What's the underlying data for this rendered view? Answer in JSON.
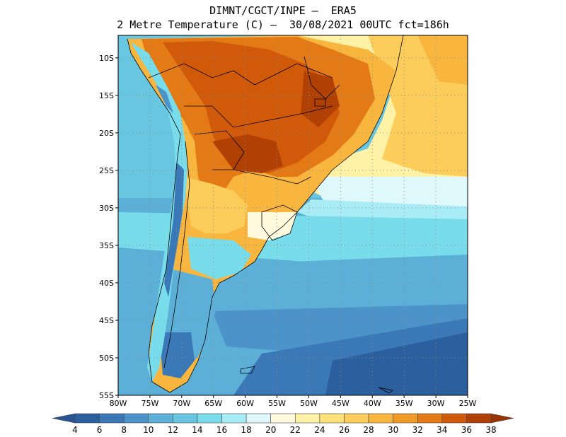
{
  "title": {
    "line1": "DIMNT/CGCT/INPE –  ERA5",
    "line2": "2 Metre Temperature (C) –  30/08/2021 00UTC fct=186h"
  },
  "map": {
    "lat_labels": [
      "10S",
      "15S",
      "20S",
      "25S",
      "30S",
      "35S",
      "40S",
      "45S",
      "50S",
      "55S"
    ],
    "lon_labels": [
      "80W",
      "75W",
      "70W",
      "65W",
      "60W",
      "55W",
      "50W",
      "45W",
      "40W",
      "35W",
      "30W",
      "25W"
    ],
    "lat_values": [
      -10,
      -15,
      -20,
      -25,
      -30,
      -35,
      -40,
      -45,
      -50,
      -55
    ],
    "lon_values": [
      -80,
      -75,
      -70,
      -65,
      -60,
      -55,
      -50,
      -45,
      -40,
      -35,
      -30,
      -25
    ],
    "lat_range": [
      -55,
      -7
    ],
    "lon_range": [
      -80,
      -25
    ],
    "grid": "dotted"
  },
  "colorbar": {
    "labels": [
      "4",
      "6",
      "8",
      "10",
      "12",
      "14",
      "16",
      "18",
      "20",
      "22",
      "24",
      "26",
      "28",
      "30",
      "32",
      "34",
      "36",
      "38"
    ],
    "colors": [
      "#2c5f9e",
      "#3a78b8",
      "#4b93c9",
      "#5cb0d8",
      "#68c6e0",
      "#78dcea",
      "#a8ecf5",
      "#dff8fb",
      "#fff9dd",
      "#fff2a6",
      "#ffe17a",
      "#fccd5a",
      "#f8b63f",
      "#f09a28",
      "#e37a16",
      "#d05a0a",
      "#b04004"
    ],
    "low_color": "#2a5394",
    "high_color": "#9a3304"
  }
}
